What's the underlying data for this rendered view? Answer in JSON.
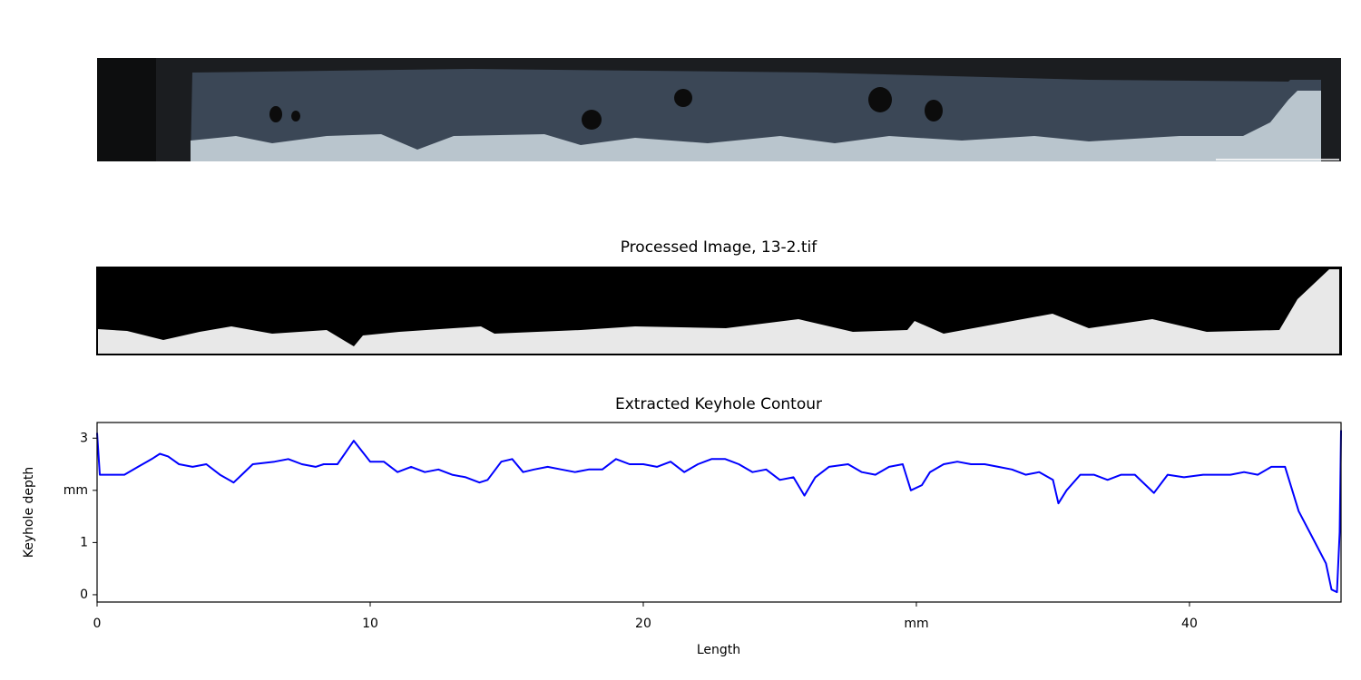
{
  "image_title": "Processed Image, 13-2.tif",
  "chart_data": {
    "type": "line",
    "title": "Extracted Keyhole Contour",
    "x_label": "Length",
    "y_label": "Keyhole depth",
    "x": [
      0,
      0.1,
      0.5,
      1,
      1.5,
      2,
      2.3,
      2.6,
      3,
      3.5,
      4,
      4.5,
      5,
      5.3,
      5.7,
      6.5,
      7,
      7.5,
      8,
      8.3,
      8.8,
      9.4,
      9.7,
      10,
      10.5,
      11,
      11.5,
      12,
      12.5,
      13,
      13.5,
      14,
      14.3,
      14.8,
      15.2,
      15.6,
      16,
      16.5,
      17,
      17.5,
      18,
      18.5,
      19,
      19.5,
      20,
      20.5,
      21,
      21.5,
      22,
      22.5,
      23,
      23.5,
      24,
      24.5,
      25,
      25.5,
      25.9,
      26.3,
      26.8,
      27.5,
      28,
      28.5,
      29,
      29.5,
      29.8,
      30.2,
      30.5,
      31,
      31.5,
      32,
      32.5,
      33,
      33.5,
      34,
      34.5,
      35,
      35.2,
      35.5,
      36,
      36.5,
      37,
      37.5,
      38,
      38.4,
      38.7,
      39.2,
      39.8,
      40.5,
      41,
      41.5,
      42,
      42.5,
      43,
      43.5,
      44,
      44.5,
      45,
      45.2,
      45.4,
      45.5,
      45.55
    ],
    "values": [
      3.1,
      2.3,
      2.3,
      2.3,
      2.45,
      2.6,
      2.7,
      2.65,
      2.5,
      2.45,
      2.5,
      2.3,
      2.15,
      2.3,
      2.5,
      2.55,
      2.6,
      2.5,
      2.45,
      2.5,
      2.5,
      2.95,
      2.75,
      2.55,
      2.55,
      2.35,
      2.45,
      2.35,
      2.4,
      2.3,
      2.25,
      2.15,
      2.2,
      2.55,
      2.6,
      2.35,
      2.4,
      2.45,
      2.4,
      2.35,
      2.4,
      2.4,
      2.6,
      2.5,
      2.5,
      2.45,
      2.55,
      2.35,
      2.5,
      2.6,
      2.6,
      2.5,
      2.35,
      2.4,
      2.2,
      2.25,
      1.9,
      2.25,
      2.45,
      2.5,
      2.35,
      2.3,
      2.45,
      2.5,
      2.0,
      2.1,
      2.35,
      2.5,
      2.55,
      2.5,
      2.5,
      2.45,
      2.4,
      2.3,
      2.35,
      2.2,
      1.75,
      2.0,
      2.3,
      2.3,
      2.2,
      2.3,
      2.3,
      2.1,
      1.95,
      2.3,
      2.25,
      2.3,
      2.3,
      2.3,
      2.35,
      2.3,
      2.45,
      2.45,
      1.6,
      1.1,
      0.6,
      0.1,
      0.05,
      1.2,
      3.15
    ],
    "color": "#0000ff",
    "xlim": [
      0,
      45.55
    ],
    "ylim": [
      -0.14,
      3.3
    ],
    "xticks": [
      0,
      10,
      20,
      {
        "value": 30,
        "label": "mm"
      },
      40
    ],
    "yticks": [
      0,
      1,
      {
        "value": 2,
        "label": "mm"
      },
      3
    ]
  }
}
